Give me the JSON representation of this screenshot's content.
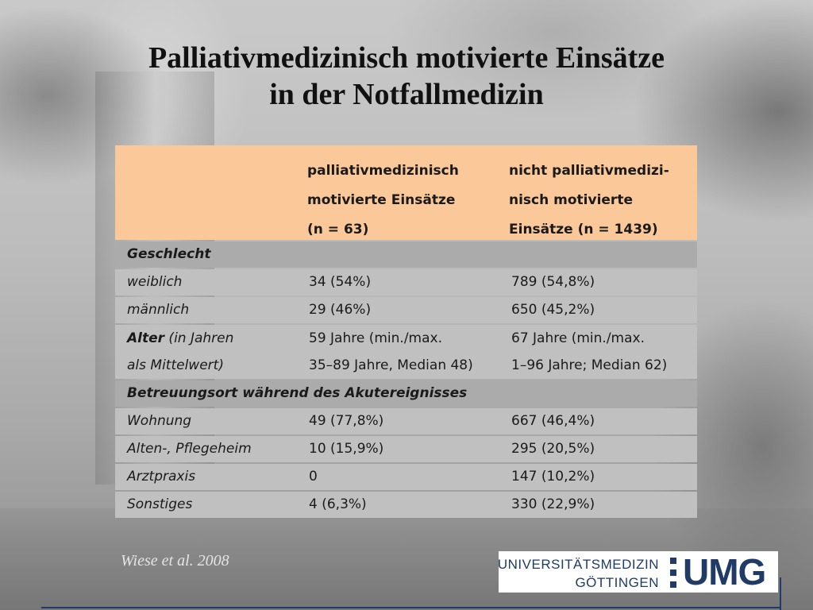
{
  "slide": {
    "title_line1": "Palliativmedizinisch motivierte Einsätze",
    "title_line2": "in der Notfallmedizin"
  },
  "table": {
    "header": {
      "col1": "palliativmedizinisch\nmotivierte Einsätze\n(n = 63)",
      "col2": "nicht palliativmedizi-\nnisch motivierte\nEinsätze (n = 1439)"
    },
    "rows": [
      {
        "label": "Geschlecht",
        "c1": "",
        "c2": ""
      },
      {
        "label": "weiblich",
        "c1": "34 (54%)",
        "c2": "789 (54,8%)"
      },
      {
        "label": "männlich",
        "c1": "29 (46%)",
        "c2": "650 (45,2%)"
      },
      {
        "label_strong": "Alter",
        "label_rest": " (in Jahren\nals Mittelwert)",
        "c1": "59 Jahre (min./max.\n35–89 Jahre, Median 48)",
        "c2": "67 Jahre (min./max.\n1–96 Jahre; Median 62)"
      },
      {
        "label": "Betreuungsort während des Akutereignisses",
        "c1": "",
        "c2": ""
      },
      {
        "label": "Wohnung",
        "c1": "49 (77,8%)",
        "c2": "667 (46,4%)"
      },
      {
        "label": "Alten-, Pflegeheim",
        "c1": "10 (15,9%)",
        "c2": "295 (20,5%)"
      },
      {
        "label": "Arztpraxis",
        "c1": "0",
        "c2": "147 (10,2%)"
      },
      {
        "label": "Sonstiges",
        "c1": "4 (6,3%)",
        "c2": "330 (22,9%)"
      }
    ]
  },
  "citation": "Wiese et al. 2008",
  "logo": {
    "line1": "UNIVERSITÄTSMEDIZIN",
    "line2": "GÖTTINGEN",
    "mark": "UMG",
    "color": "#1f3b66"
  }
}
